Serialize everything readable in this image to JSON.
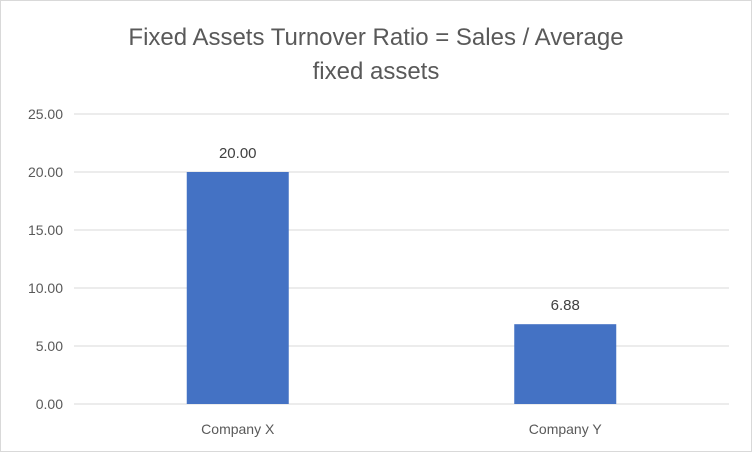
{
  "chart_data": {
    "type": "bar",
    "title_lines": [
      "Fixed Assets Turnover Ratio = Sales / Average",
      "fixed assets"
    ],
    "categories": [
      "Company X",
      "Company Y"
    ],
    "values": [
      20.0,
      6.88
    ],
    "data_labels": [
      "20.00",
      "6.88"
    ],
    "y_ticks": [
      "0.00",
      "5.00",
      "10.00",
      "15.00",
      "20.00",
      "25.00"
    ],
    "ylim": [
      0,
      25
    ],
    "xlabel": "",
    "ylabel": "",
    "grid": true,
    "legend": "none",
    "bar_color": "#4472C4",
    "gridline_color": "#d9d9d9"
  }
}
